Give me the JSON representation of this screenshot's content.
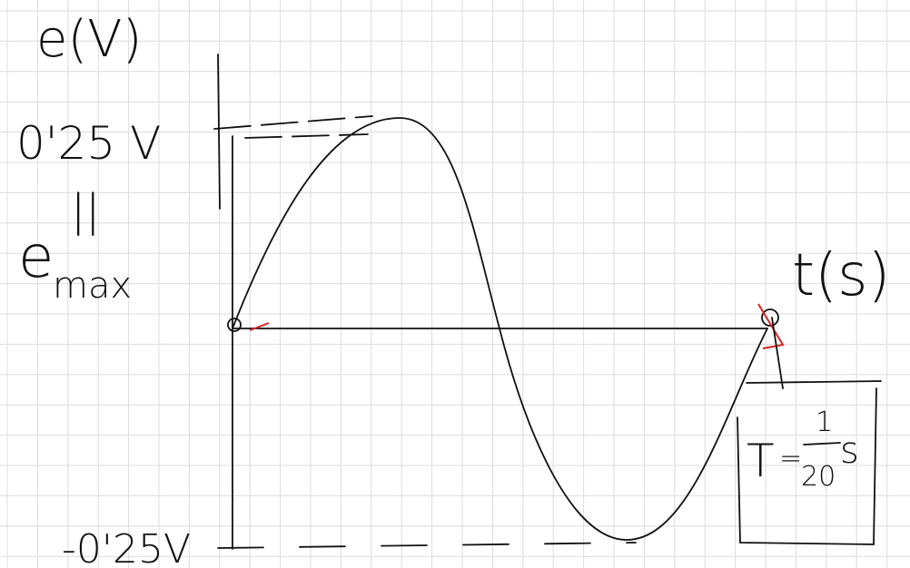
{
  "labels": {
    "y_axis": "e(V)",
    "max": "0'25 V",
    "equals": "||",
    "emax": "e",
    "emax_sub": "max",
    "x_axis": "t(s)",
    "min": "-0'25V"
  },
  "period": {
    "symbol": "T",
    "sign": "=",
    "numerator": "1",
    "denominator": "20",
    "unit": "s"
  }
}
